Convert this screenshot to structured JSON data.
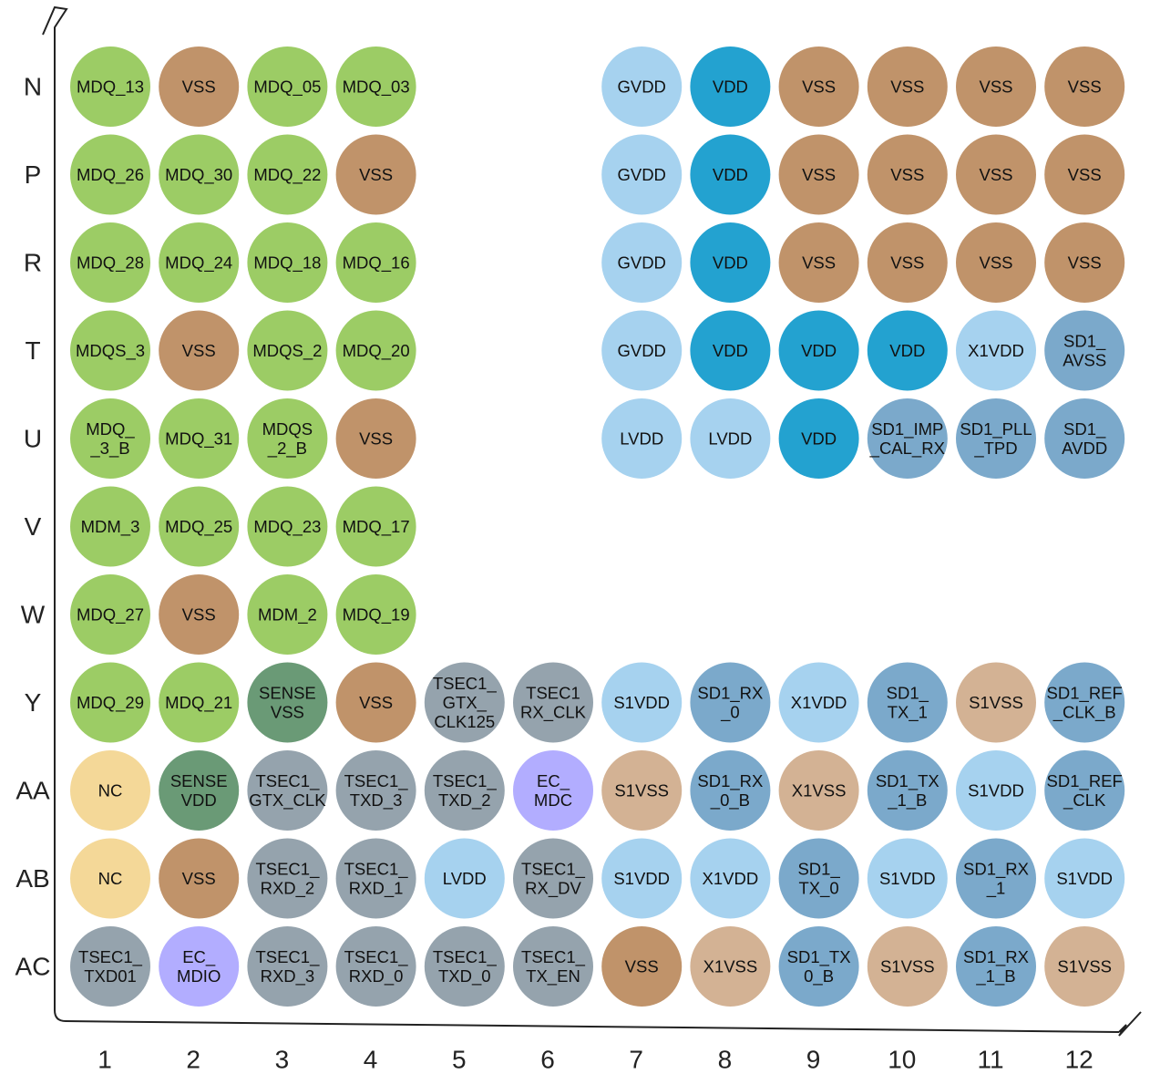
{
  "rows": [
    "N",
    "P",
    "R",
    "T",
    "U",
    "V",
    "W",
    "Y",
    "AA",
    "AB",
    "AC"
  ],
  "columns": [
    "1",
    "2",
    "3",
    "4",
    "5",
    "6",
    "7",
    "8",
    "9",
    "10",
    "11",
    "12"
  ],
  "colors": {
    "ddr": "#9ccc65",
    "vss": "#c0936a",
    "gvdd": "#a6d2ef",
    "vdd": "#23a2d0",
    "serdes": "#7ba9cb",
    "sense": "#6a9a76",
    "tsec": "#95a3ad",
    "ec": "#b2adff",
    "nc": "#f4d898",
    "s1vss": "#d3b294",
    "lvdd": "#a6d2ef",
    "s1vdd": "#a6d2ef"
  },
  "balls": [
    {
      "row": 0,
      "col": 0,
      "lines": [
        "MDQ_13"
      ],
      "group": "ddr"
    },
    {
      "row": 0,
      "col": 1,
      "lines": [
        "VSS"
      ],
      "group": "vss"
    },
    {
      "row": 0,
      "col": 2,
      "lines": [
        "MDQ_05"
      ],
      "group": "ddr"
    },
    {
      "row": 0,
      "col": 3,
      "lines": [
        "MDQ_03"
      ],
      "group": "ddr"
    },
    {
      "row": 0,
      "col": 6,
      "lines": [
        "GVDD"
      ],
      "group": "gvdd"
    },
    {
      "row": 0,
      "col": 7,
      "lines": [
        "VDD"
      ],
      "group": "vdd"
    },
    {
      "row": 0,
      "col": 8,
      "lines": [
        "VSS"
      ],
      "group": "vss"
    },
    {
      "row": 0,
      "col": 9,
      "lines": [
        "VSS"
      ],
      "group": "vss"
    },
    {
      "row": 0,
      "col": 10,
      "lines": [
        "VSS"
      ],
      "group": "vss"
    },
    {
      "row": 0,
      "col": 11,
      "lines": [
        "VSS"
      ],
      "group": "vss"
    },
    {
      "row": 1,
      "col": 0,
      "lines": [
        "MDQ_26"
      ],
      "group": "ddr"
    },
    {
      "row": 1,
      "col": 1,
      "lines": [
        "MDQ_30"
      ],
      "group": "ddr"
    },
    {
      "row": 1,
      "col": 2,
      "lines": [
        "MDQ_22"
      ],
      "group": "ddr"
    },
    {
      "row": 1,
      "col": 3,
      "lines": [
        "VSS"
      ],
      "group": "vss"
    },
    {
      "row": 1,
      "col": 6,
      "lines": [
        "GVDD"
      ],
      "group": "gvdd"
    },
    {
      "row": 1,
      "col": 7,
      "lines": [
        "VDD"
      ],
      "group": "vdd"
    },
    {
      "row": 1,
      "col": 8,
      "lines": [
        "VSS"
      ],
      "group": "vss"
    },
    {
      "row": 1,
      "col": 9,
      "lines": [
        "VSS"
      ],
      "group": "vss"
    },
    {
      "row": 1,
      "col": 10,
      "lines": [
        "VSS"
      ],
      "group": "vss"
    },
    {
      "row": 1,
      "col": 11,
      "lines": [
        "VSS"
      ],
      "group": "vss"
    },
    {
      "row": 2,
      "col": 0,
      "lines": [
        "MDQ_28"
      ],
      "group": "ddr"
    },
    {
      "row": 2,
      "col": 1,
      "lines": [
        "MDQ_24"
      ],
      "group": "ddr"
    },
    {
      "row": 2,
      "col": 2,
      "lines": [
        "MDQ_18"
      ],
      "group": "ddr"
    },
    {
      "row": 2,
      "col": 3,
      "lines": [
        "MDQ_16"
      ],
      "group": "ddr"
    },
    {
      "row": 2,
      "col": 6,
      "lines": [
        "GVDD"
      ],
      "group": "gvdd"
    },
    {
      "row": 2,
      "col": 7,
      "lines": [
        "VDD"
      ],
      "group": "vdd"
    },
    {
      "row": 2,
      "col": 8,
      "lines": [
        "VSS"
      ],
      "group": "vss"
    },
    {
      "row": 2,
      "col": 9,
      "lines": [
        "VSS"
      ],
      "group": "vss"
    },
    {
      "row": 2,
      "col": 10,
      "lines": [
        "VSS"
      ],
      "group": "vss"
    },
    {
      "row": 2,
      "col": 11,
      "lines": [
        "VSS"
      ],
      "group": "vss"
    },
    {
      "row": 3,
      "col": 0,
      "lines": [
        "MDQS_3"
      ],
      "group": "ddr"
    },
    {
      "row": 3,
      "col": 1,
      "lines": [
        "VSS"
      ],
      "group": "vss"
    },
    {
      "row": 3,
      "col": 2,
      "lines": [
        "MDQS_2"
      ],
      "group": "ddr"
    },
    {
      "row": 3,
      "col": 3,
      "lines": [
        "MDQ_20"
      ],
      "group": "ddr"
    },
    {
      "row": 3,
      "col": 6,
      "lines": [
        "GVDD"
      ],
      "group": "gvdd"
    },
    {
      "row": 3,
      "col": 7,
      "lines": [
        "VDD"
      ],
      "group": "vdd"
    },
    {
      "row": 3,
      "col": 8,
      "lines": [
        "VDD"
      ],
      "group": "vdd"
    },
    {
      "row": 3,
      "col": 9,
      "lines": [
        "VDD"
      ],
      "group": "vdd"
    },
    {
      "row": 3,
      "col": 10,
      "lines": [
        "X1VDD"
      ],
      "group": "gvdd"
    },
    {
      "row": 3,
      "col": 11,
      "lines": [
        "SD1_",
        "AVSS"
      ],
      "group": "serdes"
    },
    {
      "row": 4,
      "col": 0,
      "lines": [
        "MDQ_",
        "_3_B"
      ],
      "group": "ddr"
    },
    {
      "row": 4,
      "col": 1,
      "lines": [
        "MDQ_31"
      ],
      "group": "ddr"
    },
    {
      "row": 4,
      "col": 2,
      "lines": [
        "MDQS",
        "_2_B"
      ],
      "group": "ddr"
    },
    {
      "row": 4,
      "col": 3,
      "lines": [
        "VSS"
      ],
      "group": "vss"
    },
    {
      "row": 4,
      "col": 6,
      "lines": [
        "LVDD"
      ],
      "group": "lvdd"
    },
    {
      "row": 4,
      "col": 7,
      "lines": [
        "LVDD"
      ],
      "group": "lvdd"
    },
    {
      "row": 4,
      "col": 8,
      "lines": [
        "VDD"
      ],
      "group": "vdd"
    },
    {
      "row": 4,
      "col": 9,
      "lines": [
        "SD1_IMP",
        "_CAL_RX"
      ],
      "group": "serdes"
    },
    {
      "row": 4,
      "col": 10,
      "lines": [
        "SD1_PLL",
        "_TPD"
      ],
      "group": "serdes"
    },
    {
      "row": 4,
      "col": 11,
      "lines": [
        "SD1_",
        "AVDD"
      ],
      "group": "serdes"
    },
    {
      "row": 5,
      "col": 0,
      "lines": [
        "MDM_3"
      ],
      "group": "ddr"
    },
    {
      "row": 5,
      "col": 1,
      "lines": [
        "MDQ_25"
      ],
      "group": "ddr"
    },
    {
      "row": 5,
      "col": 2,
      "lines": [
        "MDQ_23"
      ],
      "group": "ddr"
    },
    {
      "row": 5,
      "col": 3,
      "lines": [
        "MDQ_17"
      ],
      "group": "ddr"
    },
    {
      "row": 6,
      "col": 0,
      "lines": [
        "MDQ_27"
      ],
      "group": "ddr"
    },
    {
      "row": 6,
      "col": 1,
      "lines": [
        "VSS"
      ],
      "group": "vss"
    },
    {
      "row": 6,
      "col": 2,
      "lines": [
        "MDM_2"
      ],
      "group": "ddr"
    },
    {
      "row": 6,
      "col": 3,
      "lines": [
        "MDQ_19"
      ],
      "group": "ddr"
    },
    {
      "row": 7,
      "col": 0,
      "lines": [
        "MDQ_29"
      ],
      "group": "ddr"
    },
    {
      "row": 7,
      "col": 1,
      "lines": [
        "MDQ_21"
      ],
      "group": "ddr"
    },
    {
      "row": 7,
      "col": 2,
      "lines": [
        "SENSE",
        "VSS"
      ],
      "group": "sense"
    },
    {
      "row": 7,
      "col": 3,
      "lines": [
        "VSS"
      ],
      "group": "vss"
    },
    {
      "row": 7,
      "col": 4,
      "lines": [
        "TSEC1_",
        "GTX_",
        "CLK125"
      ],
      "group": "tsec"
    },
    {
      "row": 7,
      "col": 5,
      "lines": [
        "TSEC1",
        "RX_CLK"
      ],
      "group": "tsec"
    },
    {
      "row": 7,
      "col": 6,
      "lines": [
        "S1VDD"
      ],
      "group": "s1vdd"
    },
    {
      "row": 7,
      "col": 7,
      "lines": [
        "SD1_RX",
        "_0"
      ],
      "group": "serdes"
    },
    {
      "row": 7,
      "col": 8,
      "lines": [
        "X1VDD"
      ],
      "group": "gvdd"
    },
    {
      "row": 7,
      "col": 9,
      "lines": [
        "SD1_",
        "TX_1"
      ],
      "group": "serdes"
    },
    {
      "row": 7,
      "col": 10,
      "lines": [
        "S1VSS"
      ],
      "group": "s1vss"
    },
    {
      "row": 7,
      "col": 11,
      "lines": [
        "SD1_REF",
        "_CLK_B"
      ],
      "group": "serdes"
    },
    {
      "row": 8,
      "col": 0,
      "lines": [
        "NC"
      ],
      "group": "nc"
    },
    {
      "row": 8,
      "col": 1,
      "lines": [
        "SENSE",
        "VDD"
      ],
      "group": "sense"
    },
    {
      "row": 8,
      "col": 2,
      "lines": [
        "TSEC1_",
        "GTX_CLK"
      ],
      "group": "tsec"
    },
    {
      "row": 8,
      "col": 3,
      "lines": [
        "TSEC1_",
        "TXD_3"
      ],
      "group": "tsec"
    },
    {
      "row": 8,
      "col": 4,
      "lines": [
        "TSEC1_",
        "TXD_2"
      ],
      "group": "tsec"
    },
    {
      "row": 8,
      "col": 5,
      "lines": [
        "EC_",
        "MDC"
      ],
      "group": "ec"
    },
    {
      "row": 8,
      "col": 6,
      "lines": [
        "S1VSS"
      ],
      "group": "s1vss"
    },
    {
      "row": 8,
      "col": 7,
      "lines": [
        "SD1_RX",
        "_0_B"
      ],
      "group": "serdes"
    },
    {
      "row": 8,
      "col": 8,
      "lines": [
        "X1VSS"
      ],
      "group": "s1vss"
    },
    {
      "row": 8,
      "col": 9,
      "lines": [
        "SD1_TX",
        "_1_B"
      ],
      "group": "serdes"
    },
    {
      "row": 8,
      "col": 10,
      "lines": [
        "S1VDD"
      ],
      "group": "s1vdd"
    },
    {
      "row": 8,
      "col": 11,
      "lines": [
        "SD1_REF",
        "_CLK"
      ],
      "group": "serdes"
    },
    {
      "row": 9,
      "col": 0,
      "lines": [
        "NC"
      ],
      "group": "nc"
    },
    {
      "row": 9,
      "col": 1,
      "lines": [
        "VSS"
      ],
      "group": "vss"
    },
    {
      "row": 9,
      "col": 2,
      "lines": [
        "TSEC1_",
        "RXD_2"
      ],
      "group": "tsec"
    },
    {
      "row": 9,
      "col": 3,
      "lines": [
        "TSEC1_",
        "RXD_1"
      ],
      "group": "tsec"
    },
    {
      "row": 9,
      "col": 4,
      "lines": [
        "LVDD"
      ],
      "group": "lvdd"
    },
    {
      "row": 9,
      "col": 5,
      "lines": [
        "TSEC1_",
        "RX_DV"
      ],
      "group": "tsec"
    },
    {
      "row": 9,
      "col": 6,
      "lines": [
        "S1VDD"
      ],
      "group": "s1vdd"
    },
    {
      "row": 9,
      "col": 7,
      "lines": [
        "X1VDD"
      ],
      "group": "gvdd"
    },
    {
      "row": 9,
      "col": 8,
      "lines": [
        "SD1_",
        "TX_0"
      ],
      "group": "serdes"
    },
    {
      "row": 9,
      "col": 9,
      "lines": [
        "S1VDD"
      ],
      "group": "s1vdd"
    },
    {
      "row": 9,
      "col": 10,
      "lines": [
        "SD1_RX",
        "_1"
      ],
      "group": "serdes"
    },
    {
      "row": 9,
      "col": 11,
      "lines": [
        "S1VDD"
      ],
      "group": "s1vdd"
    },
    {
      "row": 10,
      "col": 0,
      "lines": [
        "TSEC1_",
        "TXD01"
      ],
      "group": "tsec"
    },
    {
      "row": 10,
      "col": 1,
      "lines": [
        "EC_",
        "MDIO"
      ],
      "group": "ec"
    },
    {
      "row": 10,
      "col": 2,
      "lines": [
        "TSEC1_",
        "RXD_3"
      ],
      "group": "tsec"
    },
    {
      "row": 10,
      "col": 3,
      "lines": [
        "TSEC1_",
        "RXD_0"
      ],
      "group": "tsec"
    },
    {
      "row": 10,
      "col": 4,
      "lines": [
        "TSEC1_",
        "TXD_0"
      ],
      "group": "tsec"
    },
    {
      "row": 10,
      "col": 5,
      "lines": [
        "TSEC1_",
        "TX_EN"
      ],
      "group": "tsec"
    },
    {
      "row": 10,
      "col": 6,
      "lines": [
        "VSS"
      ],
      "group": "vss"
    },
    {
      "row": 10,
      "col": 7,
      "lines": [
        "X1VSS"
      ],
      "group": "s1vss"
    },
    {
      "row": 10,
      "col": 8,
      "lines": [
        "SD1_TX",
        "0_B"
      ],
      "group": "serdes"
    },
    {
      "row": 10,
      "col": 9,
      "lines": [
        "S1VSS"
      ],
      "group": "s1vss"
    },
    {
      "row": 10,
      "col": 10,
      "lines": [
        "SD1_RX",
        "_1_B"
      ],
      "group": "serdes"
    },
    {
      "row": 10,
      "col": 11,
      "lines": [
        "S1VSS"
      ],
      "group": "s1vss"
    }
  ]
}
